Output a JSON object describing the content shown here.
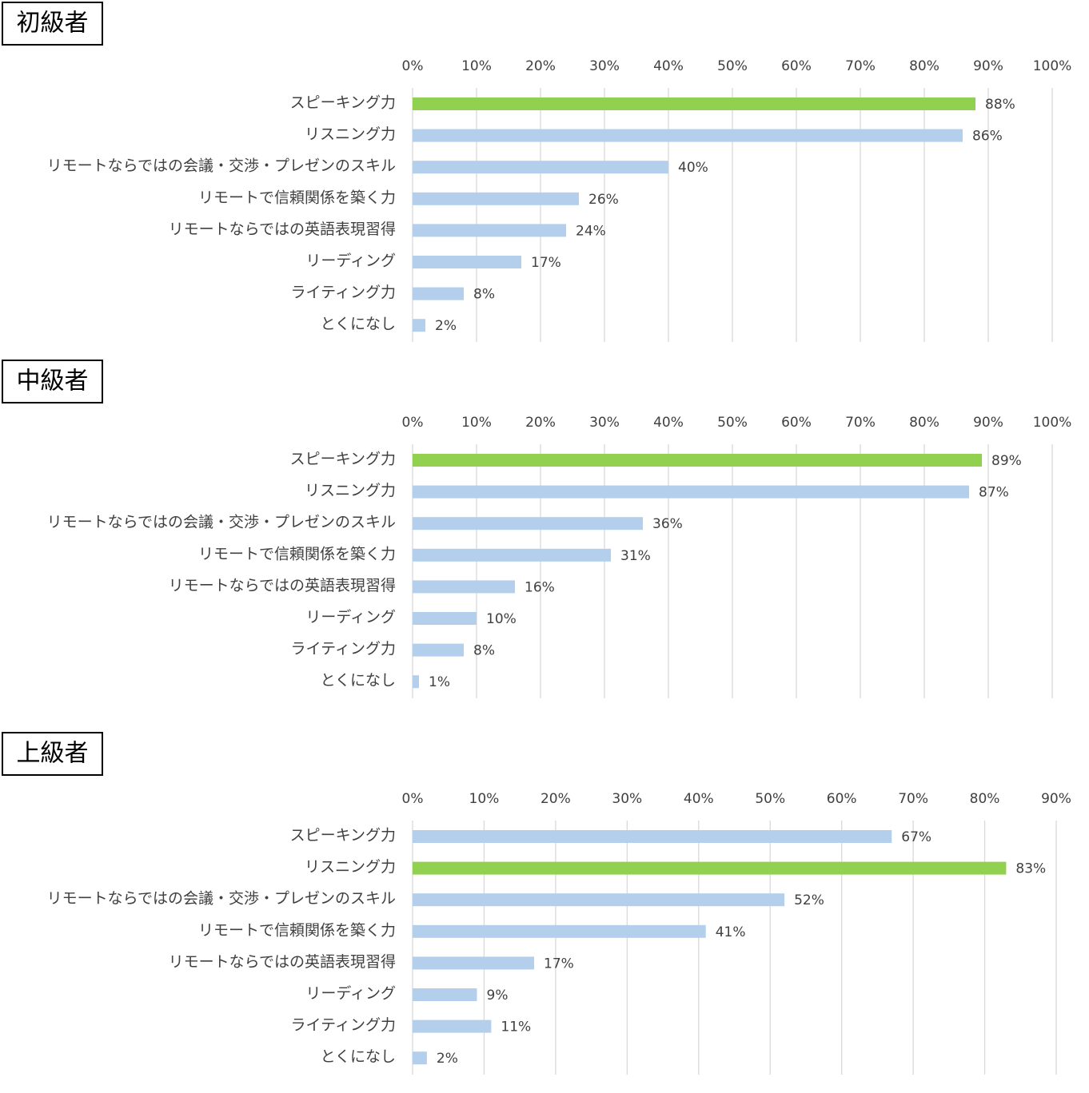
{
  "chart_data": [
    {
      "type": "bar",
      "title": "初級者",
      "categories": [
        "スピーキング力",
        "リスニング力",
        "リモートならではの会議・交渉・プレゼンのスキル",
        "リモートで信頼関係を築く力",
        "リモートならではの英語表現習得",
        "リーディング",
        "ライティング力",
        "とくになし"
      ],
      "values": [
        88,
        86,
        40,
        26,
        24,
        17,
        8,
        2
      ],
      "value_labels": [
        "88%",
        "86%",
        "40%",
        "26%",
        "24%",
        "17%",
        "8%",
        "2%"
      ],
      "colors": [
        "#92d050",
        "#b4cfeb",
        "#b4cfeb",
        "#b4cfeb",
        "#b4cfeb",
        "#b4cfeb",
        "#b4cfeb",
        "#b4cfeb"
      ],
      "xlim": [
        0,
        100
      ],
      "xticks": [
        {
          "value": 0,
          "label": "0%"
        },
        {
          "value": 10,
          "label": "10%"
        },
        {
          "value": 20,
          "label": "20%"
        },
        {
          "value": 30,
          "label": "30%"
        },
        {
          "value": 40,
          "label": "40%"
        },
        {
          "value": 50,
          "label": "50%"
        },
        {
          "value": 60,
          "label": "60%"
        },
        {
          "value": 70,
          "label": "70%"
        },
        {
          "value": 80,
          "label": "80%"
        },
        {
          "value": 90,
          "label": "90%"
        },
        {
          "value": 100,
          "label": "100%"
        }
      ],
      "grid": true
    },
    {
      "type": "bar",
      "title": "中級者",
      "categories": [
        "スピーキング力",
        "リスニング力",
        "リモートならではの会議・交渉・プレゼンのスキル",
        "リモートで信頼関係を築く力",
        "リモートならではの英語表現習得",
        "リーディング",
        "ライティング力",
        "とくになし"
      ],
      "values": [
        89,
        87,
        36,
        31,
        16,
        10,
        8,
        1
      ],
      "value_labels": [
        "89%",
        "87%",
        "36%",
        "31%",
        "16%",
        "10%",
        "8%",
        "1%"
      ],
      "colors": [
        "#92d050",
        "#b4cfeb",
        "#b4cfeb",
        "#b4cfeb",
        "#b4cfeb",
        "#b4cfeb",
        "#b4cfeb",
        "#b4cfeb"
      ],
      "xlim": [
        0,
        100
      ],
      "xticks": [
        {
          "value": 0,
          "label": "0%"
        },
        {
          "value": 10,
          "label": "10%"
        },
        {
          "value": 20,
          "label": "20%"
        },
        {
          "value": 30,
          "label": "30%"
        },
        {
          "value": 40,
          "label": "40%"
        },
        {
          "value": 50,
          "label": "50%"
        },
        {
          "value": 60,
          "label": "60%"
        },
        {
          "value": 70,
          "label": "70%"
        },
        {
          "value": 80,
          "label": "80%"
        },
        {
          "value": 90,
          "label": "90%"
        },
        {
          "value": 100,
          "label": "100%"
        }
      ],
      "grid": true
    },
    {
      "type": "bar",
      "title": "上級者",
      "categories": [
        "スピーキング力",
        "リスニング力",
        "リモートならではの会議・交渉・プレゼンのスキル",
        "リモートで信頼関係を築く力",
        "リモートならではの英語表現習得",
        "リーディング",
        "ライティング力",
        "とくになし"
      ],
      "values": [
        67,
        83,
        52,
        41,
        17,
        9,
        11,
        2
      ],
      "value_labels": [
        "67%",
        "83%",
        "52%",
        "41%",
        "17%",
        "9%",
        "11%",
        "2%"
      ],
      "colors": [
        "#b4cfeb",
        "#92d050",
        "#b4cfeb",
        "#b4cfeb",
        "#b4cfeb",
        "#b4cfeb",
        "#b4cfeb",
        "#b4cfeb"
      ],
      "xlim": [
        0,
        90
      ],
      "xticks": [
        {
          "value": 0,
          "label": "0%"
        },
        {
          "value": 10,
          "label": "10%"
        },
        {
          "value": 20,
          "label": "20%"
        },
        {
          "value": 30,
          "label": "30%"
        },
        {
          "value": 40,
          "label": "40%"
        },
        {
          "value": 50,
          "label": "50%"
        },
        {
          "value": 60,
          "label": "60%"
        },
        {
          "value": 70,
          "label": "70%"
        },
        {
          "value": 80,
          "label": "80%"
        },
        {
          "value": 90,
          "label": "90%"
        }
      ],
      "grid": true
    }
  ]
}
